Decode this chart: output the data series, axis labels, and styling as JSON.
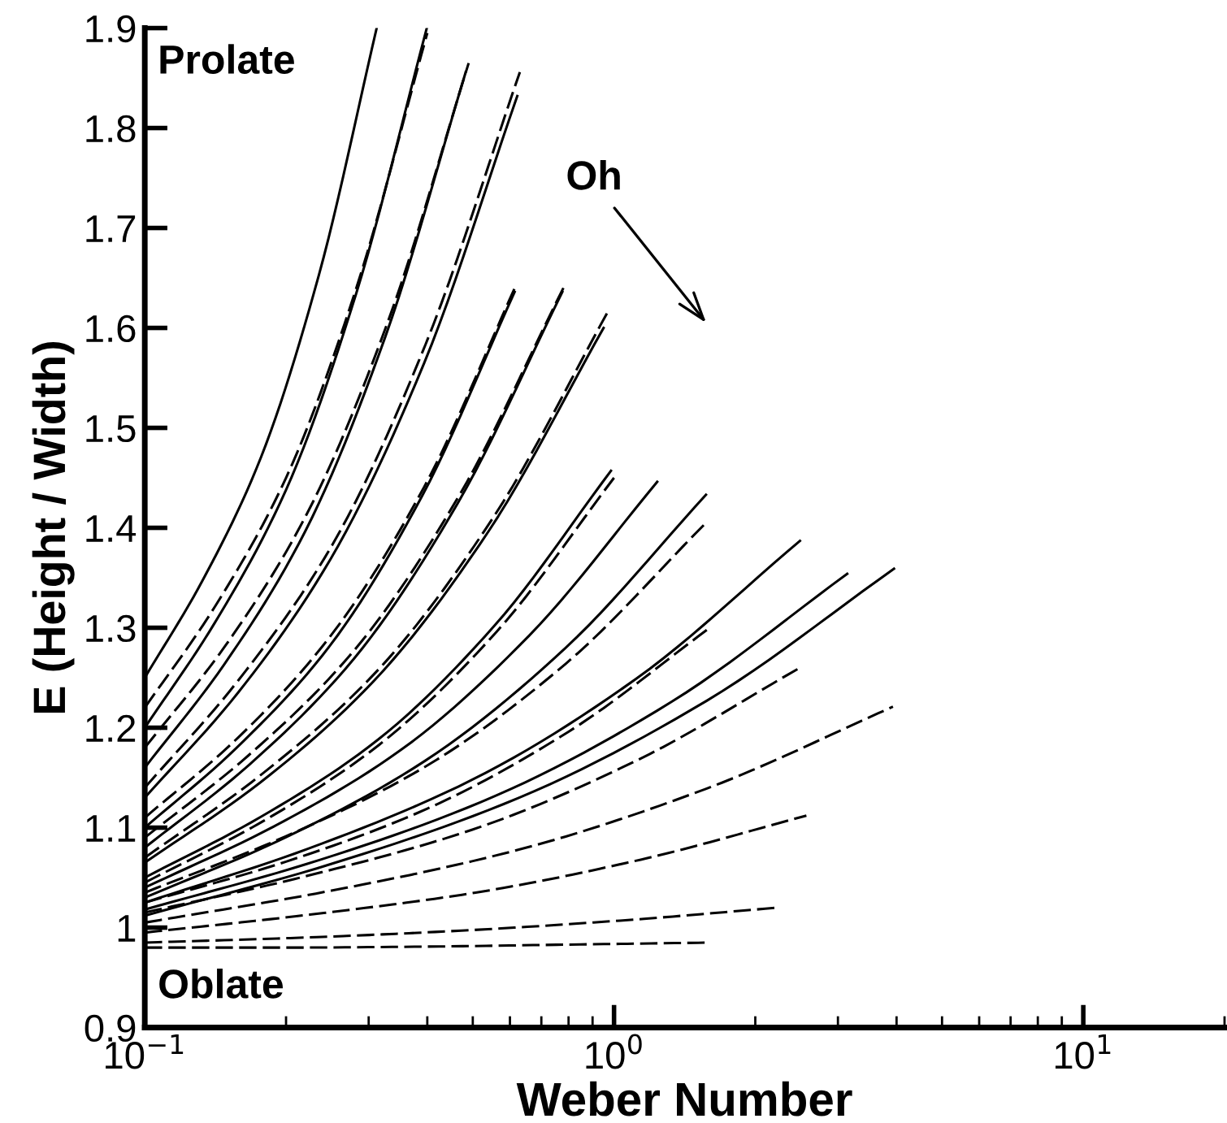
{
  "chart_data": {
    "type": "line",
    "xlabel": "Weber Number",
    "ylabel": "E (Height / Width)",
    "log": "x",
    "xlim": [
      0.1,
      20
    ],
    "ylim": [
      0.9,
      1.9
    ],
    "xticks": [
      {
        "value": 0.1,
        "label": "10$^{−1}$"
      },
      {
        "value": 1,
        "label": "10$^{0}$"
      },
      {
        "value": 10,
        "label": "10$^{1}$"
      }
    ],
    "yticks": [
      0.9,
      1,
      1.1,
      1.2,
      1.3,
      1.4,
      1.5,
      1.6,
      1.7,
      1.8,
      1.9
    ],
    "grid": false,
    "legend": false,
    "marker": "none",
    "annotations": [
      "Prolate",
      "Oblate",
      "Oh"
    ],
    "series": [
      {
        "color": "#000000",
        "line_style": "solid",
        "x": [
          0.1,
          0.133,
          0.177,
          0.235,
          0.312
        ],
        "values": [
          1.25,
          1.348,
          1.471,
          1.653,
          1.9
        ]
      },
      {
        "color": "#000000",
        "line_style": "solid",
        "x": [
          0.1,
          0.141,
          0.2,
          0.282,
          0.399
        ],
        "values": [
          1.2,
          1.305,
          1.438,
          1.634,
          1.9
        ]
      },
      {
        "color": "#000000",
        "line_style": "solid",
        "x": [
          0.1,
          0.148,
          0.22,
          0.326,
          0.483
        ],
        "values": [
          1.16,
          1.264,
          1.397,
          1.592,
          1.856
        ]
      },
      {
        "color": "#000000",
        "line_style": "solid",
        "x": [
          0.1,
          0.158,
          0.249,
          0.394,
          0.622
        ],
        "values": [
          1.13,
          1.235,
          1.369,
          1.565,
          1.832
        ]
      },
      {
        "color": "#000000",
        "line_style": "solid",
        "x": [
          0.1,
          0.157,
          0.248,
          0.39,
          0.614
        ],
        "values": [
          1.1,
          1.18,
          1.282,
          1.432,
          1.636
        ]
      },
      {
        "color": "#000000",
        "line_style": "solid",
        "x": [
          0.1,
          0.167,
          0.279,
          0.465,
          0.776
        ],
        "values": [
          1.08,
          1.163,
          1.269,
          1.425,
          1.636
        ]
      },
      {
        "color": "#000000",
        "line_style": "solid",
        "x": [
          0.1,
          0.176,
          0.308,
          0.541,
          0.95
        ],
        "values": [
          1.065,
          1.145,
          1.247,
          1.397,
          1.6
        ]
      },
      {
        "color": "#000000",
        "line_style": "solid",
        "x": [
          0.1,
          0.177,
          0.314,
          0.556,
          0.985
        ],
        "values": [
          1.05,
          1.111,
          1.188,
          1.302,
          1.457
        ]
      },
      {
        "color": "#000000",
        "line_style": "solid",
        "x": [
          0.1,
          0.188,
          0.352,
          0.659,
          1.236
        ],
        "values": [
          1.04,
          1.101,
          1.178,
          1.292,
          1.446
        ]
      },
      {
        "color": "#000000",
        "line_style": "solid",
        "x": [
          0.1,
          0.199,
          0.396,
          0.789,
          1.57
        ],
        "values": [
          1.03,
          1.09,
          1.167,
          1.28,
          1.433
        ]
      },
      {
        "color": "#000000",
        "line_style": "solid",
        "x": [
          0.1,
          0.223,
          0.499,
          1.115,
          2.49
        ],
        "values": [
          1.025,
          1.079,
          1.148,
          1.249,
          1.387
        ]
      },
      {
        "color": "#000000",
        "line_style": "solid",
        "x": [
          0.1,
          0.237,
          0.56,
          1.327,
          3.14
        ],
        "values": [
          1.018,
          1.068,
          1.132,
          1.226,
          1.354
        ]
      },
      {
        "color": "#000000",
        "line_style": "solid",
        "x": [
          0.1,
          0.251,
          0.628,
          1.576,
          3.95
        ],
        "values": [
          1.012,
          1.064,
          1.13,
          1.227,
          1.359
        ]
      },
      {
        "color": "#000000",
        "line_style": "dashed",
        "x": [
          0.1,
          0.141,
          0.2,
          0.282,
          0.4
        ],
        "values": [
          1.22,
          1.321,
          1.45,
          1.639,
          1.895
        ]
      },
      {
        "color": "#000000",
        "line_style": "dashed",
        "x": [
          0.1,
          0.149,
          0.221,
          0.329,
          0.49
        ],
        "values": [
          1.18,
          1.283,
          1.413,
          1.605,
          1.865
        ]
      },
      {
        "color": "#000000",
        "line_style": "dashed",
        "x": [
          0.1,
          0.158,
          0.251,
          0.397,
          0.63
        ],
        "values": [
          1.14,
          1.247,
          1.383,
          1.584,
          1.856
        ]
      },
      {
        "color": "#000000",
        "line_style": "dashed",
        "x": [
          0.1,
          0.158,
          0.249,
          0.394,
          0.62
        ],
        "values": [
          1.11,
          1.19,
          1.292,
          1.441,
          1.644
        ]
      },
      {
        "color": "#000000",
        "line_style": "dashed",
        "x": [
          0.1,
          0.167,
          0.279,
          0.466,
          0.78
        ],
        "values": [
          1.09,
          1.173,
          1.277,
          1.431,
          1.64
        ]
      },
      {
        "color": "#000000",
        "line_style": "dashed",
        "x": [
          0.1,
          0.177,
          0.313,
          0.554,
          0.98
        ],
        "values": [
          1.07,
          1.153,
          1.257,
          1.411,
          1.62
        ]
      },
      {
        "color": "#000000",
        "line_style": "dashed",
        "x": [
          0.1,
          0.178,
          0.316,
          0.562,
          1.0
        ],
        "values": [
          1.045,
          1.106,
          1.183,
          1.296,
          1.45
        ]
      },
      {
        "color": "#000000",
        "line_style": "dashed",
        "x": [
          0.1,
          0.199,
          0.396,
          0.789,
          1.57
        ],
        "values": [
          1.035,
          1.091,
          1.161,
          1.264,
          1.405
        ]
      },
      {
        "color": "#000000",
        "line_style": "dashed",
        "x": [
          0.1,
          0.2,
          0.4,
          0.8,
          1.6
        ],
        "values": [
          1.025,
          1.066,
          1.119,
          1.196,
          1.3
        ]
      },
      {
        "color": "#000000",
        "line_style": "dashed",
        "x": [
          0.1,
          0.223,
          0.499,
          1.115,
          2.49
        ],
        "values": [
          1.015,
          1.052,
          1.098,
          1.167,
          1.26
        ]
      },
      {
        "color": "#000000",
        "line_style": "dashed",
        "x": [
          0.1,
          0.25,
          0.627,
          1.573,
          3.93
        ],
        "values": [
          1.005,
          1.037,
          1.078,
          1.139,
          1.221
        ]
      },
      {
        "color": "#000000",
        "line_style": "dashed",
        "x": [
          0.1,
          0.225,
          0.507,
          1.14,
          2.57
        ],
        "values": [
          0.995,
          1.013,
          1.035,
          1.068,
          1.112
        ]
      },
      {
        "color": "#000000",
        "line_style": "dashed",
        "x": [
          0.1,
          0.218,
          0.473,
          1.03,
          2.24
        ],
        "values": [
          0.985,
          0.99,
          0.997,
          1.007,
          1.02
        ]
      },
      {
        "color": "#000000",
        "line_style": "dashed",
        "x": [
          0.1,
          0.2,
          0.4,
          0.8,
          1.6
        ],
        "values": [
          0.98,
          0.98,
          0.981,
          0.983,
          0.985
        ]
      }
    ]
  }
}
